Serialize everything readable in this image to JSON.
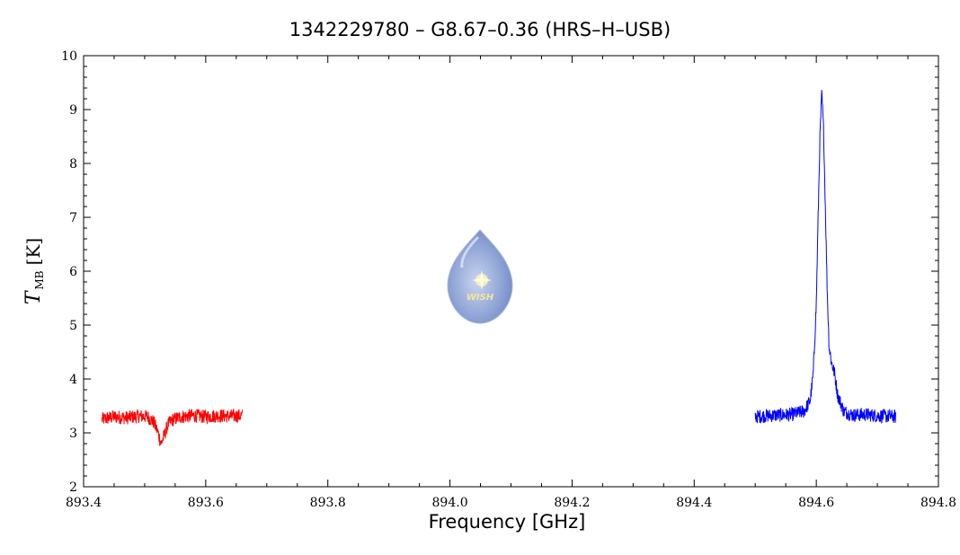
{
  "chart_data": {
    "type": "line",
    "title": "1342229780 – G8.67–0.36 (HRS–H–USB)",
    "xlabel": "Frequency [GHz]",
    "ylabel": {
      "main": "T",
      "sub": "MB",
      "unit": "[K]"
    },
    "xlim": [
      893.4,
      894.8
    ],
    "ylim": [
      2,
      10
    ],
    "x_ticks": [
      "893.4",
      "893.6",
      "893.8",
      "894.0",
      "894.2",
      "894.4",
      "894.6",
      "894.8"
    ],
    "y_ticks": [
      "2",
      "3",
      "4",
      "5",
      "6",
      "7",
      "8",
      "9",
      "10"
    ],
    "grid": false,
    "series": [
      {
        "color": "#ff0000",
        "points": [
          [
            893.43,
            3.25
          ],
          [
            893.45,
            3.3
          ],
          [
            893.47,
            3.28
          ],
          [
            893.49,
            3.31
          ],
          [
            893.505,
            3.3
          ],
          [
            893.515,
            3.2
          ],
          [
            893.522,
            3.0
          ],
          [
            893.527,
            2.8
          ],
          [
            893.532,
            2.95
          ],
          [
            893.538,
            3.15
          ],
          [
            893.545,
            3.24
          ],
          [
            893.56,
            3.3
          ],
          [
            893.58,
            3.32
          ],
          [
            893.6,
            3.3
          ],
          [
            893.62,
            3.32
          ],
          [
            893.64,
            3.31
          ],
          [
            893.66,
            3.32
          ]
        ]
      },
      {
        "color": "#0000ff",
        "points": [
          [
            894.5,
            3.3
          ],
          [
            894.52,
            3.32
          ],
          [
            894.54,
            3.33
          ],
          [
            894.56,
            3.34
          ],
          [
            894.58,
            3.4
          ],
          [
            894.59,
            3.6
          ],
          [
            894.595,
            4.1
          ],
          [
            894.6,
            5.4
          ],
          [
            894.603,
            7.0
          ],
          [
            894.606,
            8.5
          ],
          [
            894.609,
            9.3
          ],
          [
            894.612,
            8.6
          ],
          [
            894.615,
            7.1
          ],
          [
            894.618,
            5.6
          ],
          [
            894.621,
            4.6
          ],
          [
            894.625,
            4.3
          ],
          [
            894.63,
            4.1
          ],
          [
            894.635,
            3.7
          ],
          [
            894.645,
            3.4
          ],
          [
            894.66,
            3.33
          ],
          [
            894.68,
            3.34
          ],
          [
            894.7,
            3.32
          ],
          [
            894.73,
            3.3
          ]
        ]
      }
    ]
  },
  "watermark": {
    "logo_text": "WISH"
  }
}
